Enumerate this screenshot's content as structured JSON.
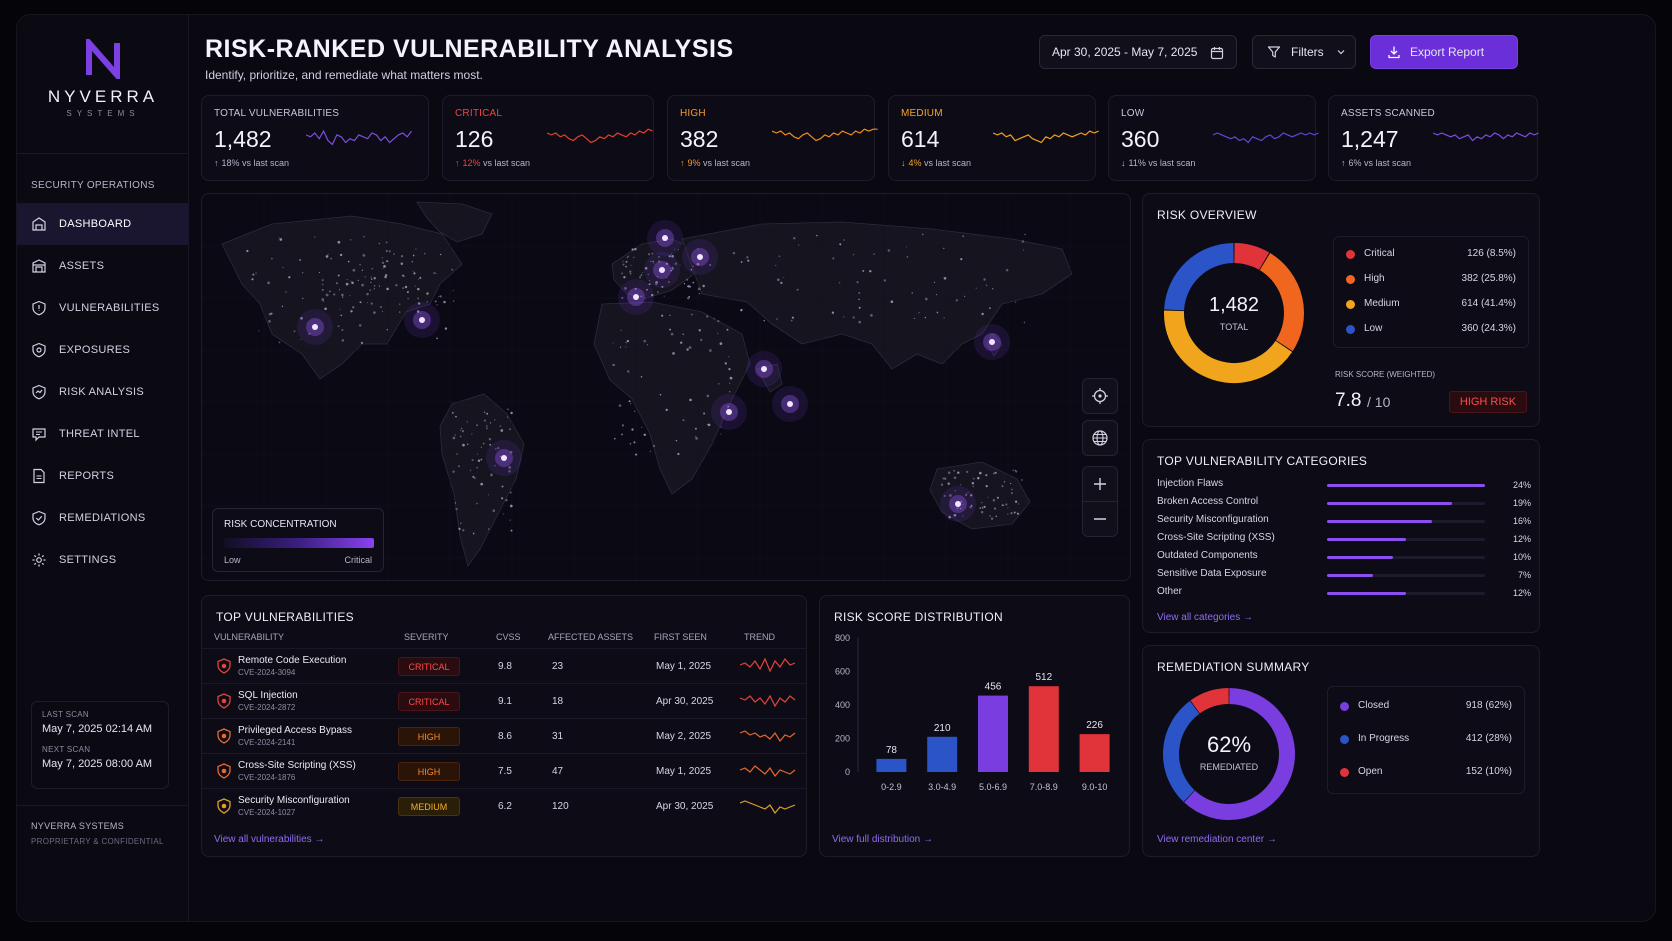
{
  "brand": {
    "name": "NYVERRA",
    "sub": "SYSTEMS"
  },
  "sidebar": {
    "section": "SECURITY OPERATIONS",
    "items": [
      {
        "label": "DASHBOARD",
        "icon": "dashboard-icon"
      },
      {
        "label": "ASSETS",
        "icon": "assets-icon"
      },
      {
        "label": "VULNERABILITIES",
        "icon": "shield-icon"
      },
      {
        "label": "EXPOSURES",
        "icon": "exposure-icon"
      },
      {
        "label": "RISK ANALYSIS",
        "icon": "risk-icon"
      },
      {
        "label": "THREAT INTEL",
        "icon": "threat-icon"
      },
      {
        "label": "REPORTS",
        "icon": "report-icon"
      },
      {
        "label": "REMEDIATIONS",
        "icon": "check-shield-icon"
      },
      {
        "label": "SETTINGS",
        "icon": "gear-icon"
      }
    ],
    "last_scan_label": "LAST SCAN",
    "last_scan_value": "May 7, 2025   02:14 AM",
    "next_scan_label": "NEXT SCAN",
    "next_scan_value": "May 7, 2025   08:00 AM",
    "footer_company": "NYVERRA SYSTEMS",
    "footer_note": "PROPRIETARY & CONFIDENTIAL"
  },
  "header": {
    "title": "RISK-RANKED VULNERABILITY ANALYSIS",
    "subtitle": "Identify, prioritize, and remediate what matters most.",
    "date_range": "Apr 30, 2025 - May 7, 2025",
    "filters_label": "Filters",
    "export_label": "Export Report"
  },
  "kpis": [
    {
      "label": "TOTAL VULNERABILITIES",
      "value": "1,482",
      "change": "18%",
      "arrow": "↑",
      "suffix": "vs last scan",
      "color": "#c9c4dc",
      "spark": "#7a4de0"
    },
    {
      "label": "CRITICAL",
      "value": "126",
      "change": "12%",
      "arrow": "↑",
      "suffix": "vs last scan",
      "color": "#f0443f",
      "spark": "#e0402f"
    },
    {
      "label": "HIGH",
      "value": "382",
      "change": "9%",
      "arrow": "↑",
      "suffix": "vs last scan",
      "color": "#f59a2a",
      "spark": "#f08a1f"
    },
    {
      "label": "MEDIUM",
      "value": "614",
      "change": "4%",
      "arrow": "↓",
      "suffix": "vs last scan",
      "color": "#f2a629",
      "spark": "#f0a020"
    },
    {
      "label": "LOW",
      "value": "360",
      "change": "11%",
      "arrow": "↓",
      "suffix": "vs last scan",
      "color": "#c9c4dc",
      "spark": "#5a48d8"
    },
    {
      "label": "ASSETS SCANNED",
      "value": "1,247",
      "change": "6%",
      "arrow": "↑",
      "suffix": "vs last scan",
      "color": "#c9c4dc",
      "spark": "#7a4de0"
    }
  ],
  "map": {
    "legend_title": "RISK CONCENTRATION",
    "legend_low": "Low",
    "legend_high": "Critical"
  },
  "risk_overview": {
    "title": "RISK OVERVIEW",
    "total": "1,482",
    "total_label": "TOTAL",
    "legend": [
      {
        "name": "Critical",
        "value": "126 (8.5%)",
        "color": "#e0333a"
      },
      {
        "name": "High",
        "value": "382 (25.8%)",
        "color": "#f0661e"
      },
      {
        "name": "Medium",
        "value": "614 (41.4%)",
        "color": "#f0a51c"
      },
      {
        "name": "Low",
        "value": "360 (24.3%)",
        "color": "#2a54c8"
      }
    ],
    "score_label": "RISK SCORE (WEIGHTED)",
    "score": "7.8",
    "score_max": "/ 10",
    "badge": "HIGH RISK"
  },
  "categories": {
    "title": "TOP VULNERABILITY CATEGORIES",
    "items": [
      {
        "name": "Injection Flaws",
        "pct": "24%",
        "value": 24
      },
      {
        "name": "Broken Access Control",
        "pct": "19%",
        "value": 19
      },
      {
        "name": "Security Misconfiguration",
        "pct": "16%",
        "value": 16
      },
      {
        "name": "Cross-Site Scripting (XSS)",
        "pct": "12%",
        "value": 12
      },
      {
        "name": "Outdated Components",
        "pct": "10%",
        "value": 10
      },
      {
        "name": "Sensitive Data Exposure",
        "pct": "7%",
        "value": 7
      },
      {
        "name": "Other",
        "pct": "12%",
        "value": 12
      }
    ],
    "link": "View all categories"
  },
  "top_vulns": {
    "title": "TOP VULNERABILITIES",
    "columns": [
      "VULNERABILITY",
      "SEVERITY",
      "CVSS",
      "AFFECTED ASSETS",
      "FIRST SEEN",
      "TREND"
    ],
    "rows": [
      {
        "name": "Remote Code Execution",
        "cve": "CVE-2024-3094",
        "severity": "CRITICAL",
        "cvss": "9.8",
        "assets": "23",
        "seen": "May 1, 2025"
      },
      {
        "name": "SQL Injection",
        "cve": "CVE-2024-2872",
        "severity": "CRITICAL",
        "cvss": "9.1",
        "assets": "18",
        "seen": "Apr 30, 2025"
      },
      {
        "name": "Privileged Access Bypass",
        "cve": "CVE-2024-2141",
        "severity": "HIGH",
        "cvss": "8.6",
        "assets": "31",
        "seen": "May 2, 2025"
      },
      {
        "name": "Cross-Site Scripting (XSS)",
        "cve": "CVE-2024-1876",
        "severity": "HIGH",
        "cvss": "7.5",
        "assets": "47",
        "seen": "May 1, 2025"
      },
      {
        "name": "Security Misconfiguration",
        "cve": "CVE-2024-1027",
        "severity": "MEDIUM",
        "cvss": "6.2",
        "assets": "120",
        "seen": "Apr 30, 2025"
      }
    ],
    "link": "View all vulnerabilities"
  },
  "distribution": {
    "title": "RISK SCORE DISTRIBUTION",
    "link": "View full distribution"
  },
  "chart_data": {
    "type": "bar",
    "title": "RISK SCORE DISTRIBUTION",
    "categories": [
      "0-2.9",
      "3.0-4.9",
      "5.0-6.9",
      "7.0-8.9",
      "9.0-10"
    ],
    "values": [
      78,
      210,
      456,
      512,
      226
    ],
    "colors": [
      "#2a54c8",
      "#2a54c8",
      "#7a3ee0",
      "#e0333a",
      "#e0333a"
    ],
    "yticks": [
      0,
      200,
      400,
      600,
      800
    ],
    "ylim": [
      0,
      800
    ]
  },
  "remediation": {
    "title": "REMEDIATION SUMMARY",
    "percent": "62%",
    "percent_label": "REMEDIATED",
    "legend": [
      {
        "name": "Closed",
        "value": "918 (62%)",
        "color": "#7a3ee0"
      },
      {
        "name": "In Progress",
        "value": "412 (28%)",
        "color": "#2a54c8"
      },
      {
        "name": "Open",
        "value": "152 (10%)",
        "color": "#e0333a"
      }
    ],
    "link": "View remediation center"
  }
}
